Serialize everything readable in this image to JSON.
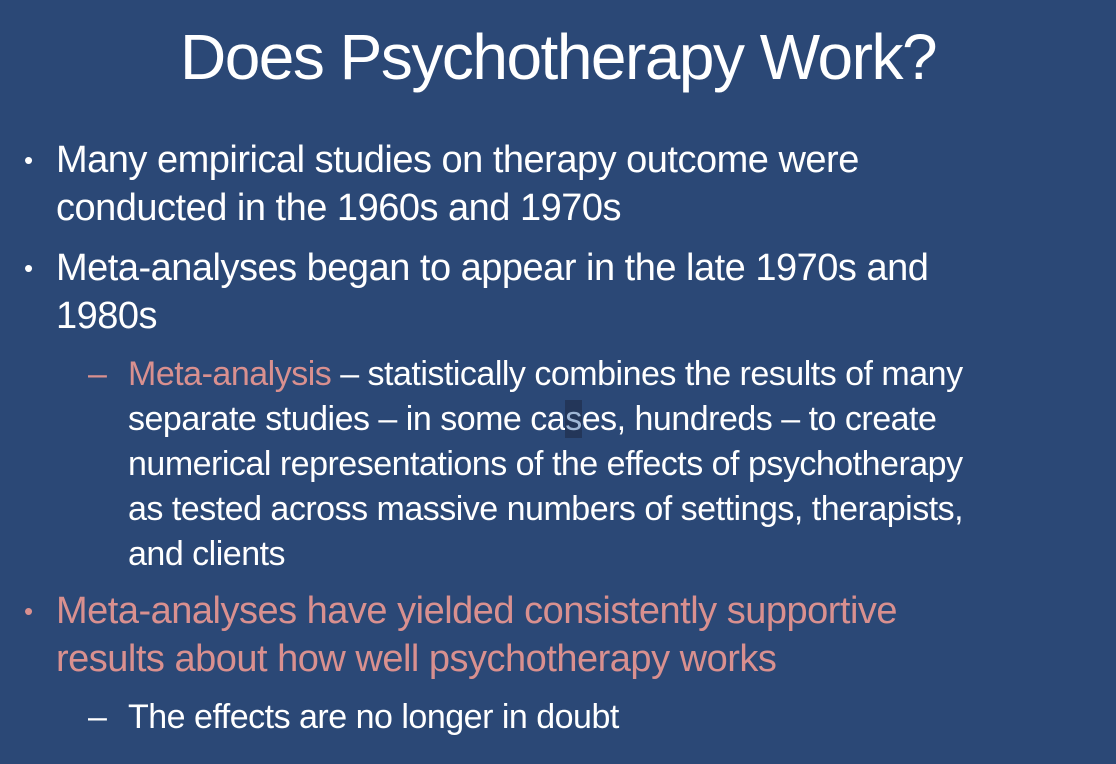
{
  "slide": {
    "title": "Does Psychotherapy Work?",
    "colors": {
      "background": "#2B4876",
      "body_text": "#FFFFFF",
      "accent": "#D9908F",
      "highlight_text": "#9FB6D4",
      "highlight_bg": "#233659"
    },
    "markers": {
      "bullet": "•",
      "dash": "–"
    },
    "bullet1": {
      "line1": "Many empirical studies on therapy outcome were",
      "line2": "conducted in the 1960s and 1970s"
    },
    "bullet2": {
      "line1": "Meta-analyses began to appear in the late 1970s and",
      "line2": "1980s"
    },
    "sub1": {
      "term": "Meta-analysis ",
      "line1_rest": "– statistically combines the results of many",
      "line2_a": "separate studies – in some ca",
      "line2_highlighted": "s",
      "line2_b": "es, hundreds – to create",
      "line3": "numerical representations of the effects of psychotherapy",
      "line4": "as tested across massive numbers of settings, therapists,",
      "line5": "and clients"
    },
    "bullet3": {
      "line1": "Meta-analyses have yielded consistently supportive",
      "line2": "results about how well psychotherapy works"
    },
    "sub2": {
      "line1": "The effects are no longer in doubt"
    }
  }
}
